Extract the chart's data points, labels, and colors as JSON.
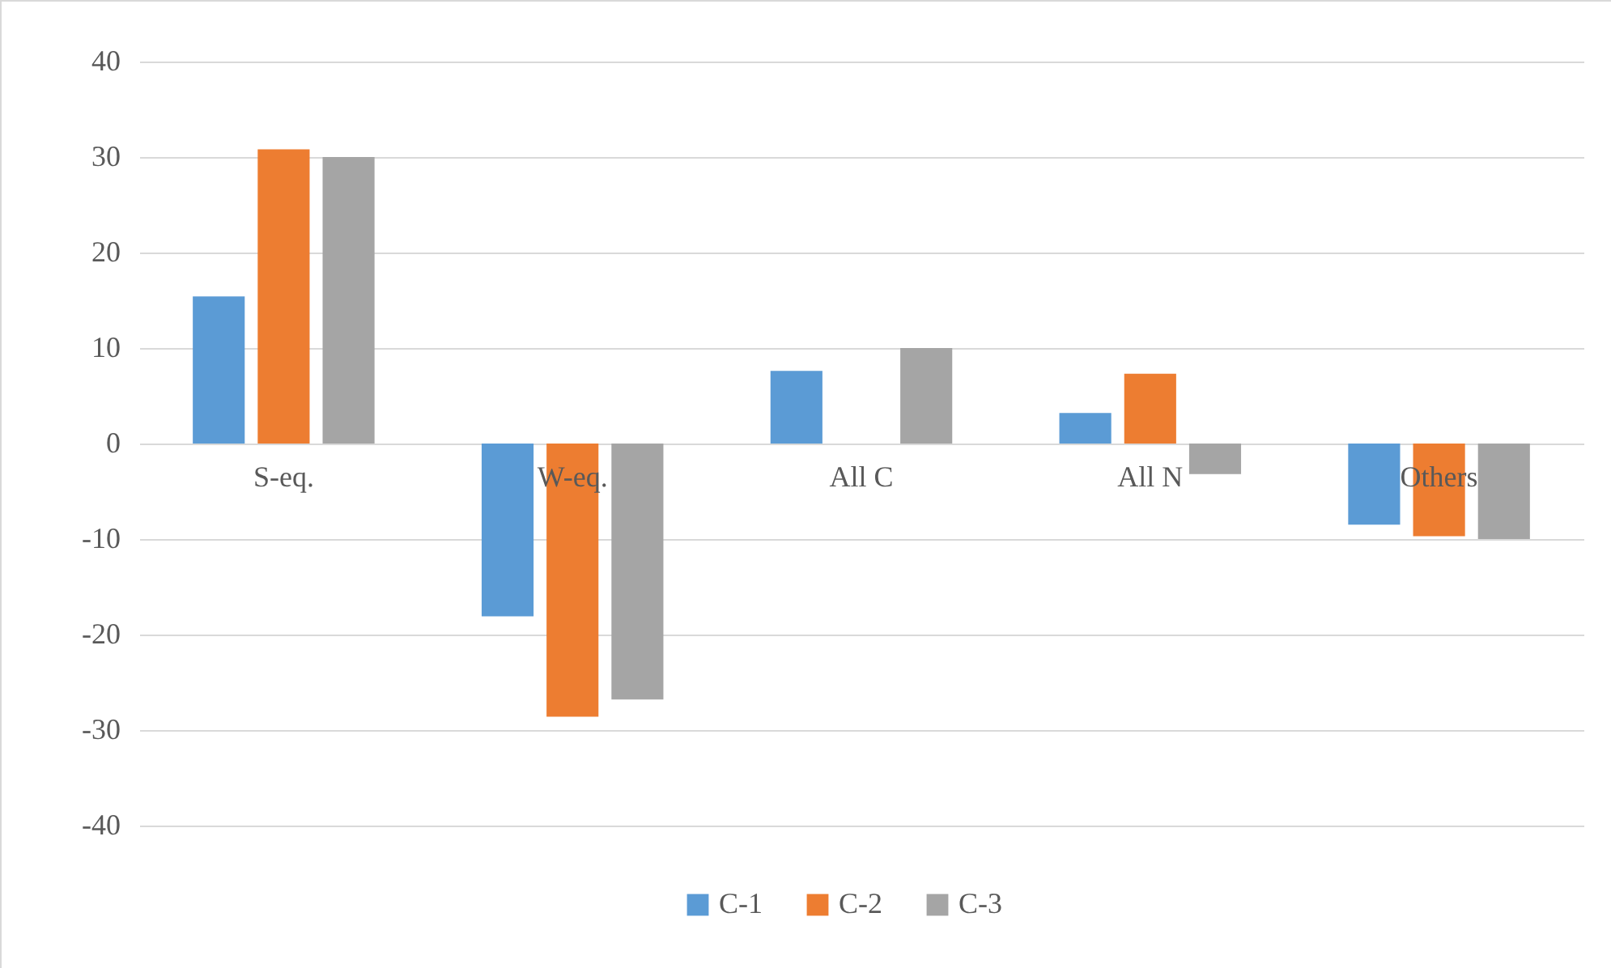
{
  "chart_data": {
    "type": "bar",
    "categories": [
      "S-eq.",
      "W-eq.",
      "All C",
      "All N",
      "Others"
    ],
    "series": [
      {
        "name": "C-1",
        "color": "#5b9bd5",
        "values": [
          15.4,
          -18.1,
          7.6,
          3.2,
          -8.5
        ]
      },
      {
        "name": "C-2",
        "color": "#ed7d31",
        "values": [
          30.8,
          -28.6,
          0,
          7.3,
          -9.7
        ]
      },
      {
        "name": "C-3",
        "color": "#a5a5a5",
        "values": [
          30.0,
          -26.8,
          10.0,
          -3.2,
          -10.0
        ]
      }
    ],
    "ylim": [
      -40,
      40
    ],
    "yticks": [
      -40,
      -30,
      -20,
      -10,
      0,
      10,
      20,
      30,
      40
    ],
    "grid": "y",
    "legend": "bottom"
  }
}
